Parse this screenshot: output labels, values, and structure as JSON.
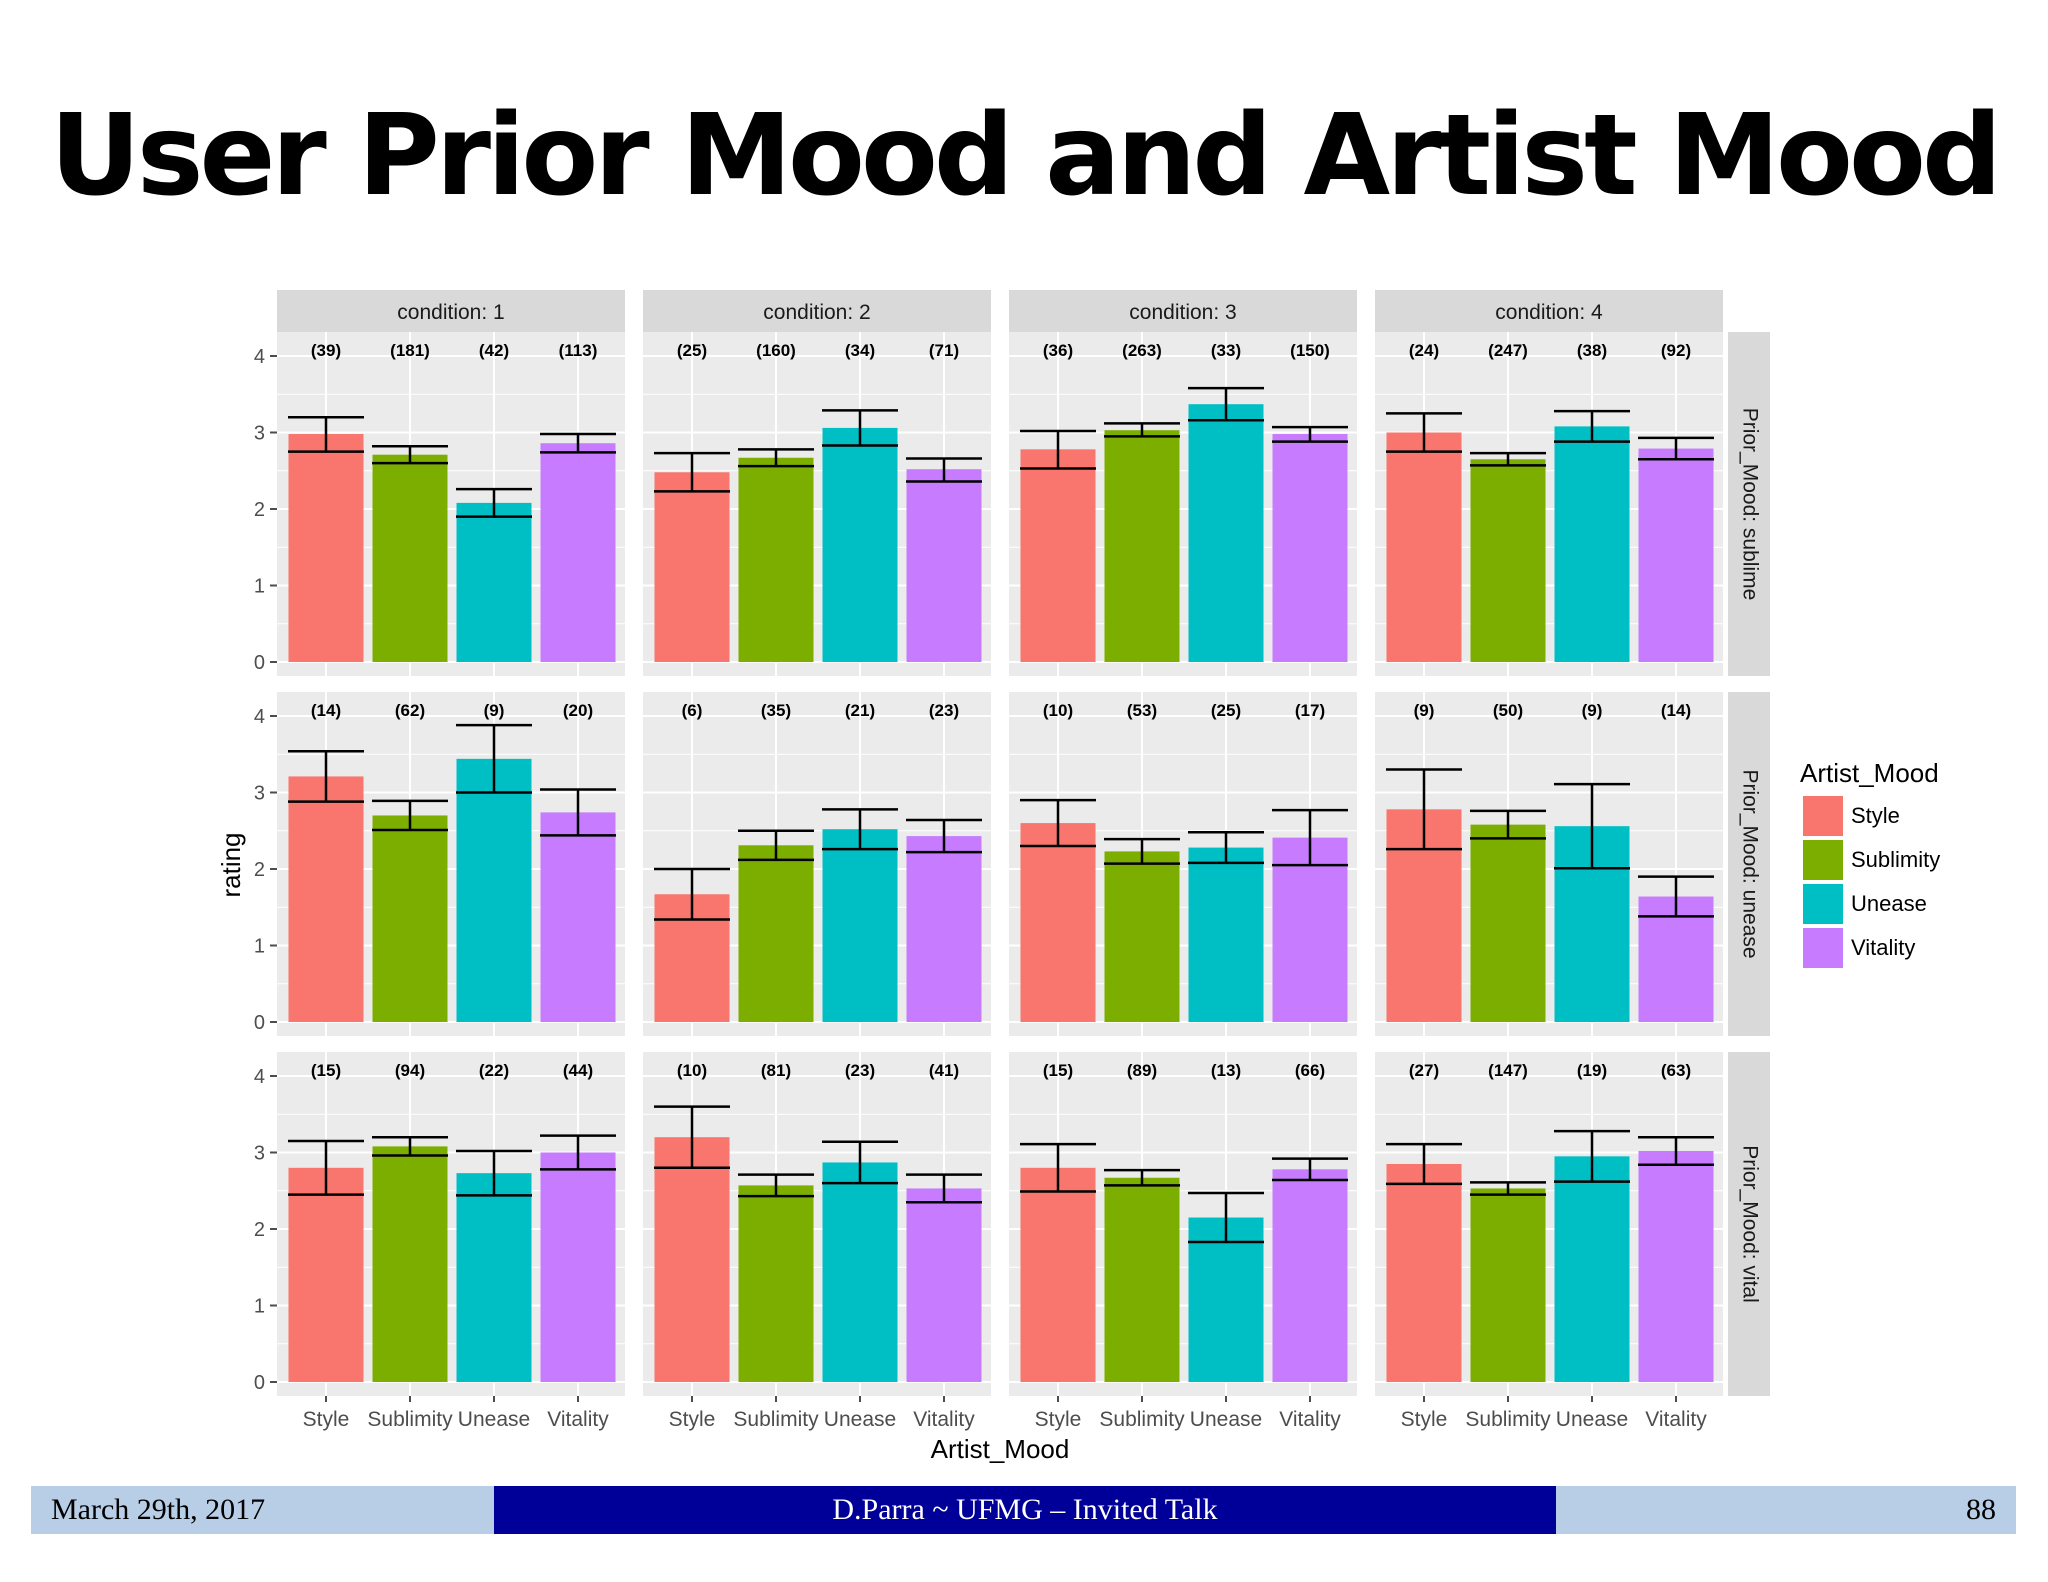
{
  "slide": {
    "title": "User Prior Mood and Artist Mood"
  },
  "footer": {
    "date": "March 29th, 2017",
    "talk": "D.Parra ~ UFMG – Invited Talk",
    "page": "88"
  },
  "colors": {
    "Style": "#f8766d",
    "Sublimity": "#7cae00",
    "Unease": "#00bfc4",
    "Vitality": "#c77cff",
    "panel_bg": "#ebebeb",
    "strip_bg": "#d9d9d9",
    "grid": "#ffffff"
  },
  "chart_data": {
    "type": "bar",
    "xlabel": "Artist_Mood",
    "ylabel": "rating",
    "ylim": [
      0,
      4
    ],
    "yticks": [
      "0",
      "1",
      "2",
      "3",
      "4"
    ],
    "categories": [
      "Style",
      "Sublimity",
      "Unease",
      "Vitality"
    ],
    "columns": [
      "condition: 1",
      "condition: 2",
      "condition: 3",
      "condition: 4"
    ],
    "rows": [
      "Prior_Mood: sublime",
      "Prior_Mood: unease",
      "Prior_Mood: vital"
    ],
    "legend": {
      "title": "Artist_Mood",
      "entries": [
        "Style",
        "Sublimity",
        "Unease",
        "Vitality"
      ],
      "position": "right"
    },
    "panels": [
      {
        "row": "Prior_Mood: sublime",
        "col": "condition: 1",
        "values": [
          2.98,
          2.71,
          2.08,
          2.86
        ],
        "err_low": [
          2.75,
          2.6,
          1.9,
          2.74
        ],
        "err_high": [
          3.2,
          2.82,
          2.26,
          2.98
        ],
        "counts": [
          "(39)",
          "(181)",
          "(42)",
          "(113)"
        ]
      },
      {
        "row": "Prior_Mood: sublime",
        "col": "condition: 2",
        "values": [
          2.48,
          2.67,
          3.06,
          2.52
        ],
        "err_low": [
          2.23,
          2.56,
          2.83,
          2.36
        ],
        "err_high": [
          2.73,
          2.78,
          3.29,
          2.66
        ],
        "counts": [
          "(25)",
          "(160)",
          "(34)",
          "(71)"
        ]
      },
      {
        "row": "Prior_Mood: sublime",
        "col": "condition: 3",
        "values": [
          2.78,
          3.03,
          3.37,
          2.98
        ],
        "err_low": [
          2.53,
          2.95,
          3.16,
          2.88
        ],
        "err_high": [
          3.02,
          3.12,
          3.58,
          3.07
        ],
        "counts": [
          "(36)",
          "(263)",
          "(33)",
          "(150)"
        ]
      },
      {
        "row": "Prior_Mood: sublime",
        "col": "condition: 4",
        "values": [
          3.0,
          2.65,
          3.08,
          2.79
        ],
        "err_low": [
          2.75,
          2.57,
          2.88,
          2.65
        ],
        "err_high": [
          3.25,
          2.73,
          3.28,
          2.93
        ],
        "counts": [
          "(24)",
          "(247)",
          "(38)",
          "(92)"
        ]
      },
      {
        "row": "Prior_Mood: unease",
        "col": "condition: 1",
        "values": [
          3.21,
          2.7,
          3.44,
          2.74
        ],
        "err_low": [
          2.88,
          2.51,
          3.0,
          2.44
        ],
        "err_high": [
          3.54,
          2.89,
          3.88,
          3.04
        ],
        "counts": [
          "(14)",
          "(62)",
          "(9)",
          "(20)"
        ]
      },
      {
        "row": "Prior_Mood: unease",
        "col": "condition: 2",
        "values": [
          1.67,
          2.31,
          2.52,
          2.43
        ],
        "err_low": [
          1.34,
          2.12,
          2.26,
          2.22
        ],
        "err_high": [
          2.0,
          2.5,
          2.78,
          2.64
        ],
        "counts": [
          "(6)",
          "(35)",
          "(21)",
          "(23)"
        ]
      },
      {
        "row": "Prior_Mood: unease",
        "col": "condition: 3",
        "values": [
          2.6,
          2.23,
          2.28,
          2.41
        ],
        "err_low": [
          2.3,
          2.07,
          2.08,
          2.05
        ],
        "err_high": [
          2.9,
          2.39,
          2.48,
          2.77
        ],
        "counts": [
          "(10)",
          "(53)",
          "(25)",
          "(17)"
        ]
      },
      {
        "row": "Prior_Mood: unease",
        "col": "condition: 4",
        "values": [
          2.78,
          2.58,
          2.56,
          1.64
        ],
        "err_low": [
          2.26,
          2.4,
          2.01,
          1.38
        ],
        "err_high": [
          3.3,
          2.76,
          3.11,
          1.9
        ],
        "counts": [
          "(9)",
          "(50)",
          "(9)",
          "(14)"
        ]
      },
      {
        "row": "Prior_Mood: vital",
        "col": "condition: 1",
        "values": [
          2.8,
          3.08,
          2.73,
          3.0
        ],
        "err_low": [
          2.45,
          2.96,
          2.44,
          2.78
        ],
        "err_high": [
          3.15,
          3.2,
          3.02,
          3.22
        ],
        "counts": [
          "(15)",
          "(94)",
          "(22)",
          "(44)"
        ]
      },
      {
        "row": "Prior_Mood: vital",
        "col": "condition: 2",
        "values": [
          3.2,
          2.57,
          2.87,
          2.53
        ],
        "err_low": [
          2.8,
          2.43,
          2.6,
          2.35
        ],
        "err_high": [
          3.6,
          2.71,
          3.14,
          2.71
        ],
        "counts": [
          "(10)",
          "(81)",
          "(23)",
          "(41)"
        ]
      },
      {
        "row": "Prior_Mood: vital",
        "col": "condition: 3",
        "values": [
          2.8,
          2.67,
          2.15,
          2.78
        ],
        "err_low": [
          2.49,
          2.57,
          1.83,
          2.64
        ],
        "err_high": [
          3.11,
          2.77,
          2.47,
          2.92
        ],
        "counts": [
          "(15)",
          "(89)",
          "(13)",
          "(66)"
        ]
      },
      {
        "row": "Prior_Mood: vital",
        "col": "condition: 4",
        "values": [
          2.85,
          2.53,
          2.95,
          3.02
        ],
        "err_low": [
          2.59,
          2.45,
          2.62,
          2.84
        ],
        "err_high": [
          3.11,
          2.61,
          3.28,
          3.2
        ],
        "counts": [
          "(27)",
          "(147)",
          "(19)",
          "(63)"
        ]
      }
    ]
  }
}
